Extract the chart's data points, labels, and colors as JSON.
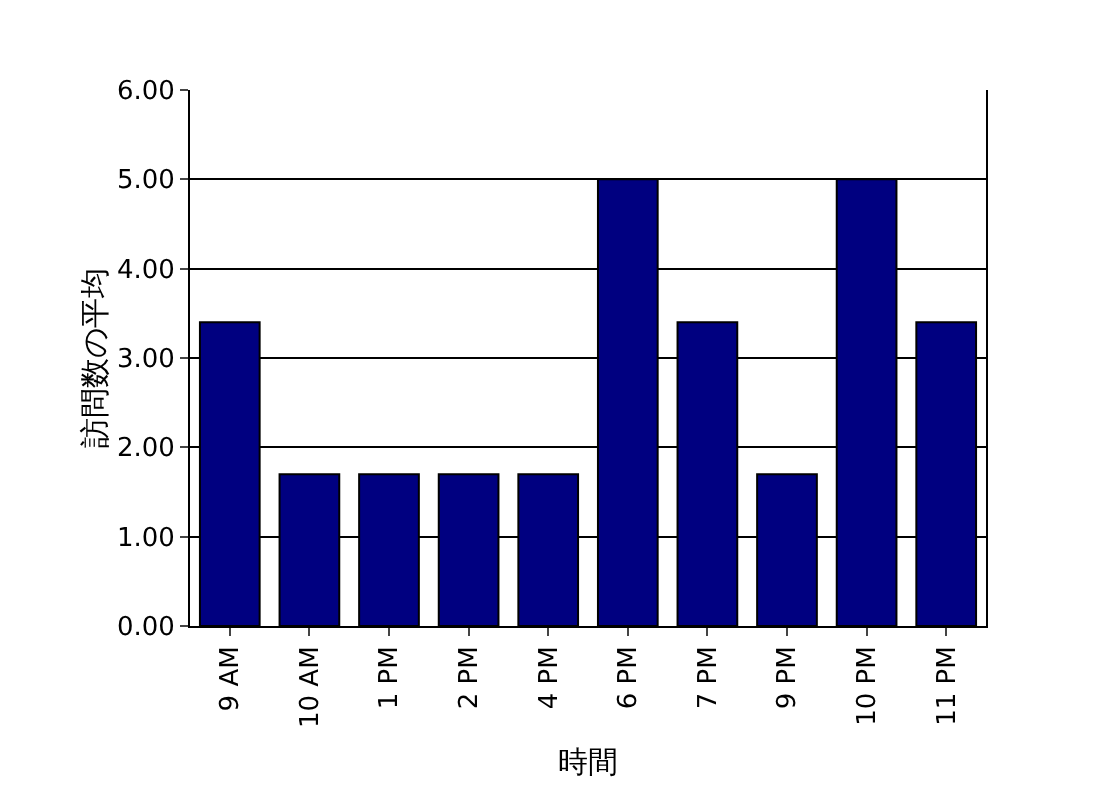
{
  "chart_data": {
    "type": "bar",
    "xlabel": "時間",
    "ylabel": "訪問数の平均",
    "categories": [
      "9 AM",
      "10 AM",
      "1 PM",
      "2 PM",
      "4 PM",
      "6 PM",
      "7 PM",
      "9 PM",
      "10 PM",
      "11 PM"
    ],
    "values": [
      3.4,
      1.7,
      1.7,
      1.7,
      1.7,
      5.0,
      3.4,
      1.7,
      5.0,
      3.4
    ],
    "color": "#000080",
    "ylim": [
      0,
      6
    ],
    "yticks": [
      {
        "value": 0,
        "label": "0.00"
      },
      {
        "value": 1,
        "label": "1.00"
      },
      {
        "value": 2,
        "label": "2.00"
      },
      {
        "value": 3,
        "label": "3.00"
      },
      {
        "value": 4,
        "label": "4.00"
      },
      {
        "value": 5,
        "label": "5.00"
      },
      {
        "value": 6,
        "label": "6.00"
      }
    ],
    "grid": "y"
  }
}
